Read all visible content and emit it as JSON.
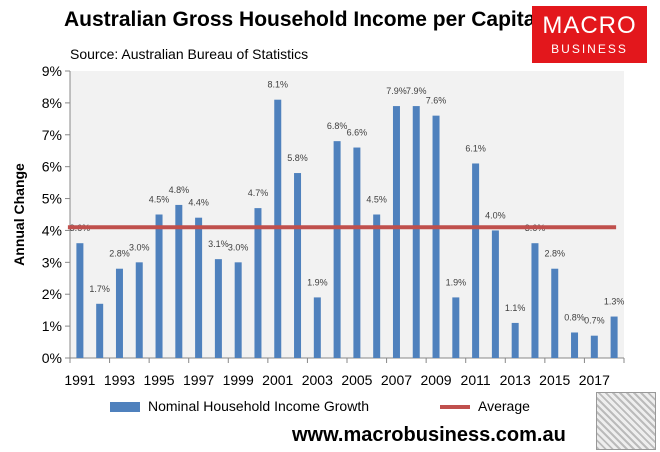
{
  "title": "Australian Gross Household Income per Capita",
  "subtitle": "Source: Australian Bureau of Statistics",
  "logo": {
    "line1": "MACRO",
    "line2": "BUSINESS",
    "color": "#e3171c"
  },
  "footer": "www.macrobusiness.com.au",
  "chart_data": {
    "type": "bar",
    "ylabel": "Annual Change",
    "ylim": [
      0,
      9
    ],
    "yticks": [
      "0%",
      "1%",
      "2%",
      "3%",
      "4%",
      "5%",
      "6%",
      "7%",
      "8%",
      "9%"
    ],
    "categories": [
      1991,
      1992,
      1993,
      1994,
      1995,
      1996,
      1997,
      1998,
      1999,
      2000,
      2001,
      2002,
      2003,
      2004,
      2005,
      2006,
      2007,
      2008,
      2009,
      2010,
      2011,
      2012,
      2013,
      2014,
      2015,
      2016,
      2017,
      2018
    ],
    "xtick_labels": [
      "1991",
      "1993",
      "1995",
      "1997",
      "1999",
      "2001",
      "2003",
      "2005",
      "2007",
      "2009",
      "2011",
      "2013",
      "2015",
      "2017"
    ],
    "series": [
      {
        "name": "Nominal Household Income Growth",
        "color": "#4f81bd",
        "values": [
          3.6,
          1.7,
          2.8,
          3.0,
          4.5,
          4.8,
          4.4,
          3.1,
          3.0,
          4.7,
          8.1,
          5.8,
          1.9,
          6.8,
          6.6,
          4.5,
          7.9,
          7.9,
          7.6,
          1.9,
          6.1,
          4.0,
          1.1,
          3.6,
          2.8,
          0.8,
          0.7,
          1.3
        ]
      },
      {
        "name": "Average",
        "color": "#c0504d",
        "type": "line",
        "value": 4.1
      }
    ],
    "grid": false,
    "plot_background": "#f2f2f2",
    "legend": "bottom"
  }
}
